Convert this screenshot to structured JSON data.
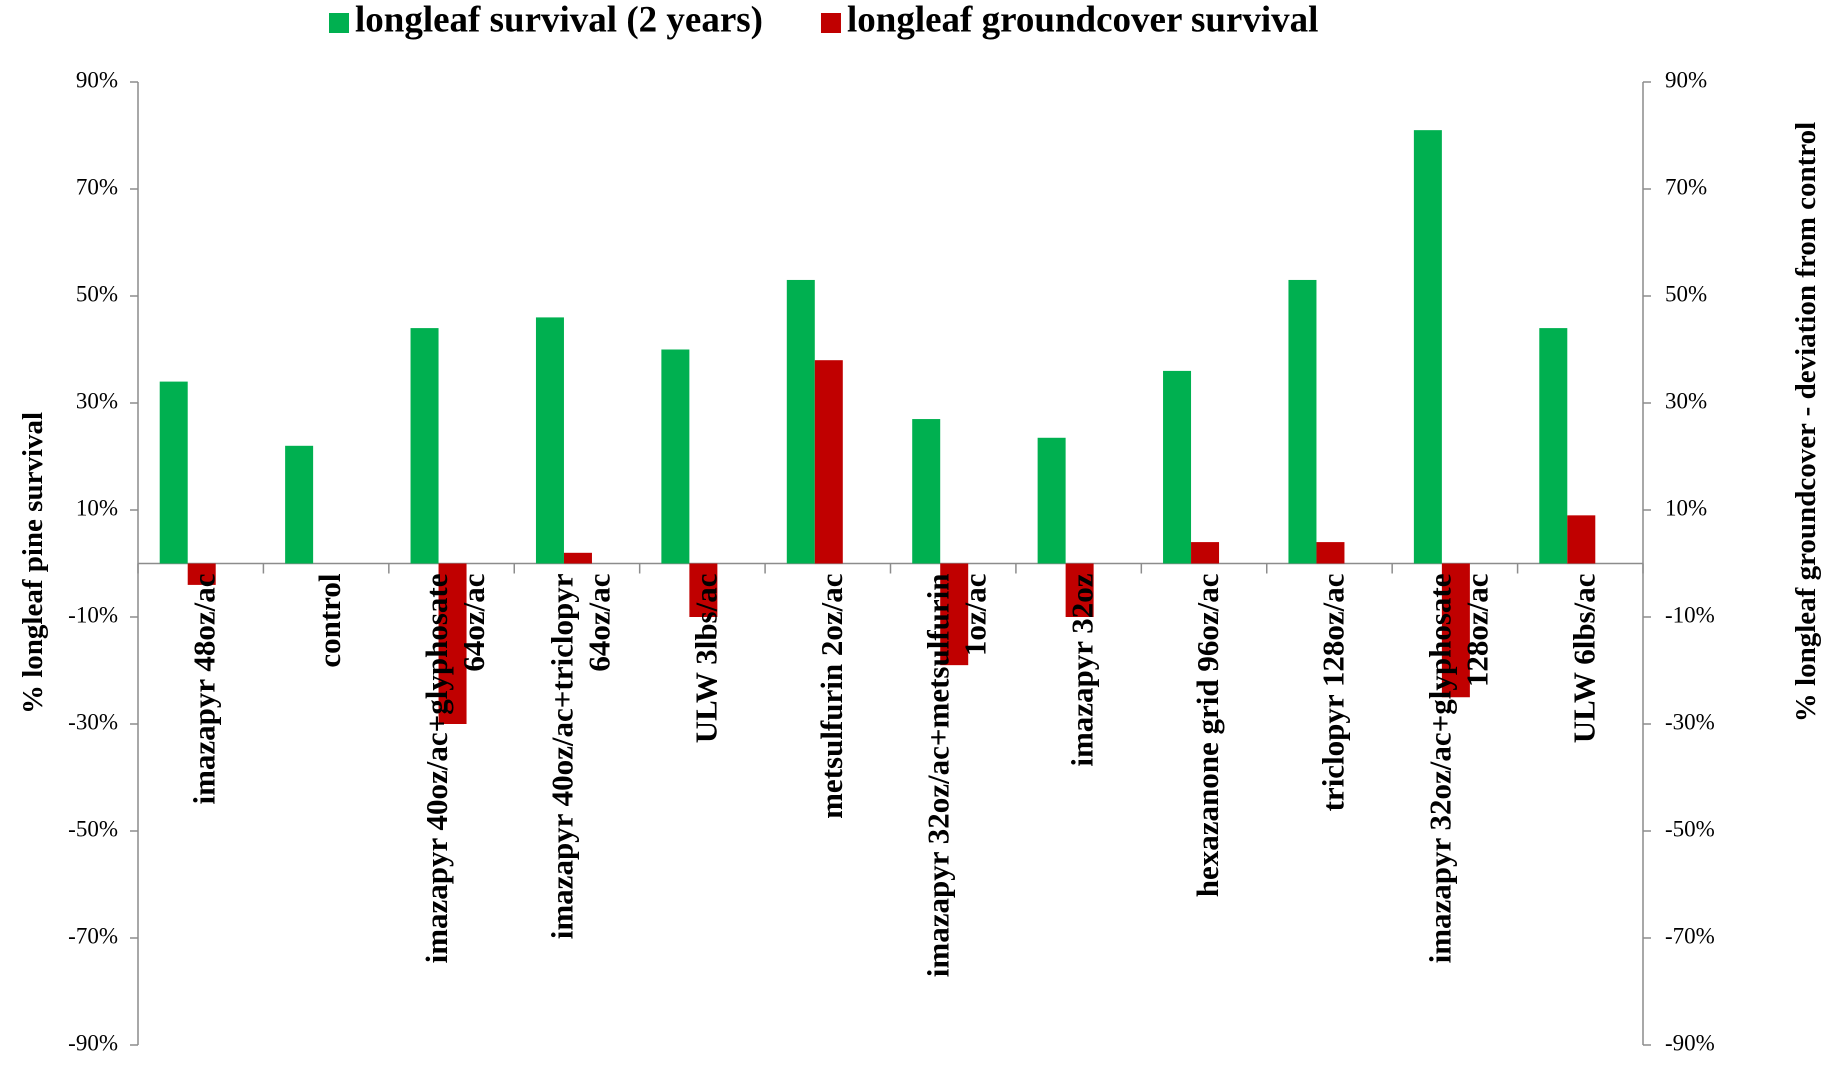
{
  "chart_data": {
    "type": "bar",
    "y_label": "% longleaf pine survival",
    "y2_label": "% longleaf groundcover - deviation from control",
    "categories": [
      "imazapyr 48oz/ac",
      "control",
      "imazapyr 40oz/ac+glyphosate 64oz/ac",
      "imazapyr 40oz/ac+triclopyr 64oz/ac",
      "ULW 3lbs/ac",
      "metsulfurin 2oz/ac",
      "imazapyr 32oz/ac+metsulfurin 1oz/ac",
      "imazapyr 32oz",
      "hexazanone grid 96oz/ac",
      "triclopyr 128oz/ac",
      "imazapyr 32oz/ac+glyphosate 128oz/ac",
      "ULW 6lbs/ac"
    ],
    "series": [
      {
        "name": "longleaf survival (2 years)",
        "color": "#00b050",
        "axis": "y",
        "values": [
          34,
          22,
          44,
          46,
          40,
          53,
          27,
          23.5,
          36,
          53,
          81,
          44
        ]
      },
      {
        "name": "longleaf groundcover survival",
        "color": "#c00000",
        "axis": "y2",
        "values": [
          -4,
          0,
          -30,
          2,
          -10,
          38,
          -19,
          -10,
          4,
          4,
          -25,
          9
        ]
      }
    ],
    "ylim": [
      -90,
      90
    ],
    "yticks": [
      {
        "value": -90,
        "label": "-90%"
      },
      {
        "value": -70,
        "label": "-70%"
      },
      {
        "value": -50,
        "label": "-50%"
      },
      {
        "value": -30,
        "label": "-30%"
      },
      {
        "value": -10,
        "label": "-10%"
      },
      {
        "value": 10,
        "label": "10%"
      },
      {
        "value": 30,
        "label": "30%"
      },
      {
        "value": 50,
        "label": "50%"
      },
      {
        "value": 70,
        "label": "70%"
      },
      {
        "value": 90,
        "label": "90%"
      }
    ],
    "y2lim": [
      -90,
      90
    ],
    "y2ticks": [
      {
        "value": -90,
        "label": "-90%"
      },
      {
        "value": -70,
        "label": "-70%"
      },
      {
        "value": -50,
        "label": "-50%"
      },
      {
        "value": -30,
        "label": "-30%"
      },
      {
        "value": -10,
        "label": "-10%"
      },
      {
        "value": 10,
        "label": "10%"
      },
      {
        "value": 30,
        "label": "30%"
      },
      {
        "value": 50,
        "label": "50%"
      },
      {
        "value": 70,
        "label": "70%"
      },
      {
        "value": 90,
        "label": "90%"
      }
    ],
    "grid": false,
    "legend": "top"
  }
}
